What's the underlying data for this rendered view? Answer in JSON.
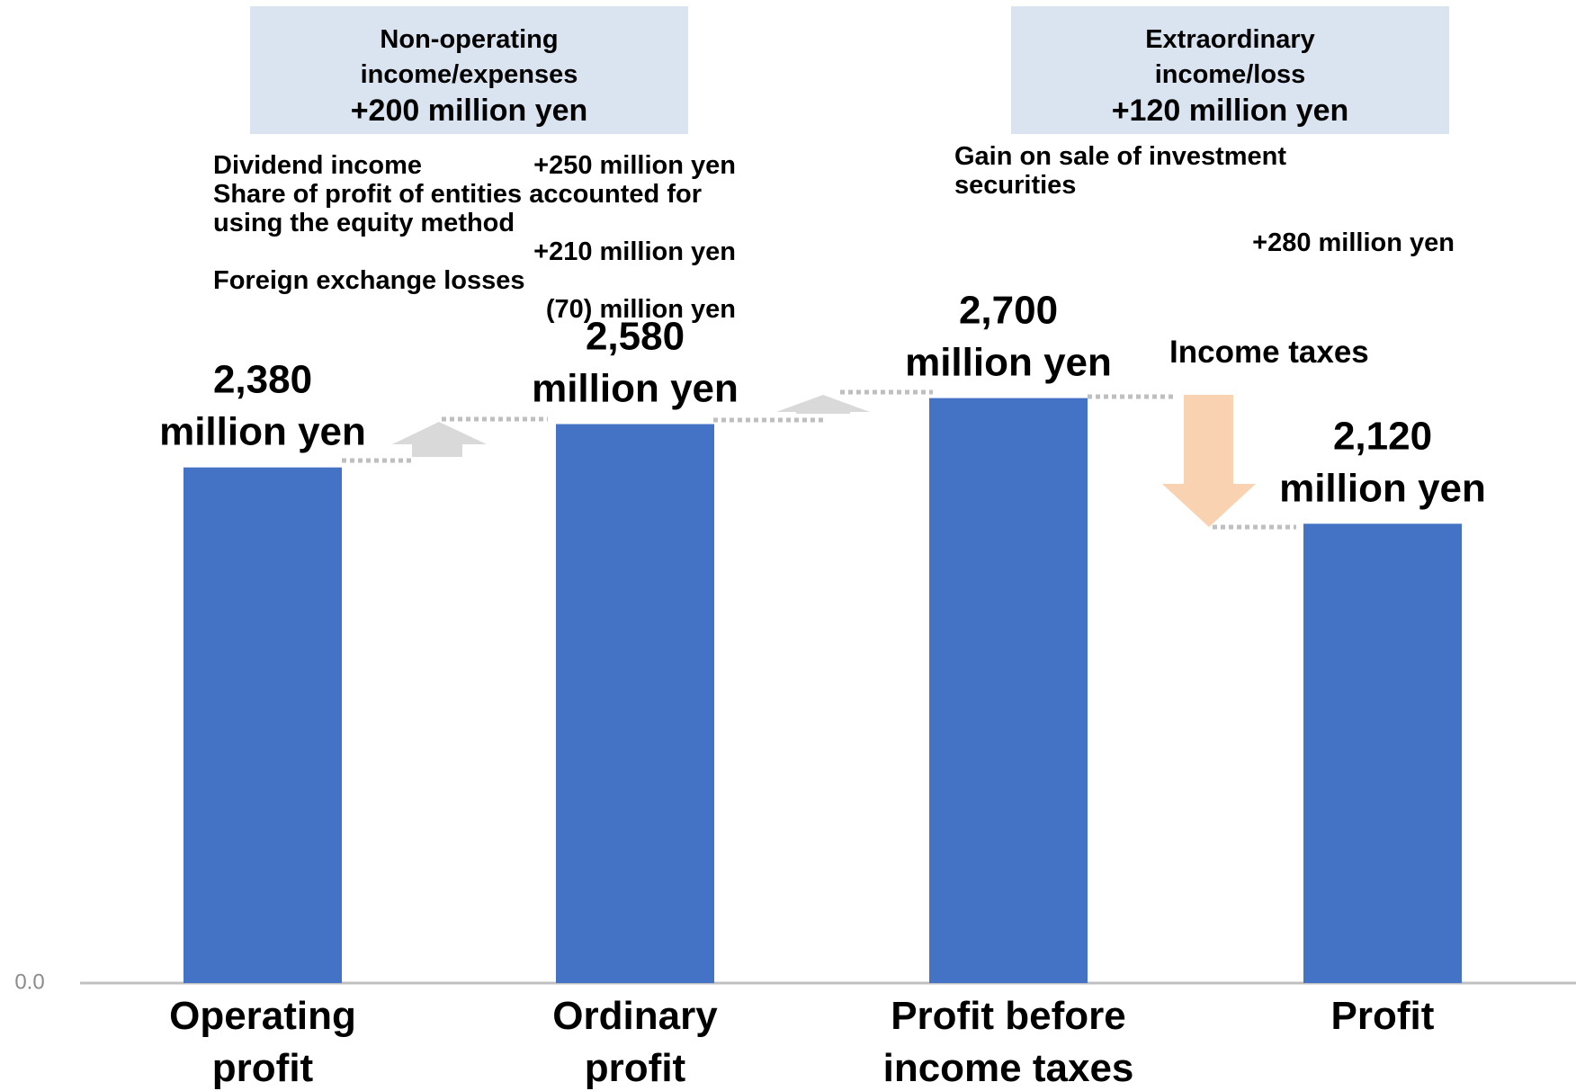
{
  "chart_data": {
    "type": "bar",
    "categories": [
      "Operating profit",
      "Ordinary profit",
      "Profit before income taxes",
      "Profit"
    ],
    "values": [
      2380,
      2580,
      2700,
      2120
    ],
    "value_labels": [
      "2,380 million yen",
      "2,580 million yen",
      "2,700 million yen",
      "2,120 million yen"
    ],
    "color": "#4472c4",
    "ylim": [
      0,
      4500
    ],
    "yticks": [
      {
        "value": 0,
        "label": "0.0"
      }
    ],
    "grid": false,
    "annotations": [
      {
        "title": "Non-operating income/expenses",
        "value": "+200 million yen",
        "items": [
          {
            "label": "Dividend income",
            "value": "+250 million yen"
          },
          {
            "label": "Share of profit of entities accounted for using the equity method",
            "value": "+210 million yen"
          },
          {
            "label": "Foreign exchange losses",
            "value": "(70) million yen"
          }
        ]
      },
      {
        "title": "Extraordinary income/loss",
        "value": "+120 million yen",
        "items": [
          {
            "label": "Gain on sale of investment securities",
            "value": "+280 million yen"
          }
        ]
      }
    ],
    "income_taxes_label": "Income taxes"
  }
}
